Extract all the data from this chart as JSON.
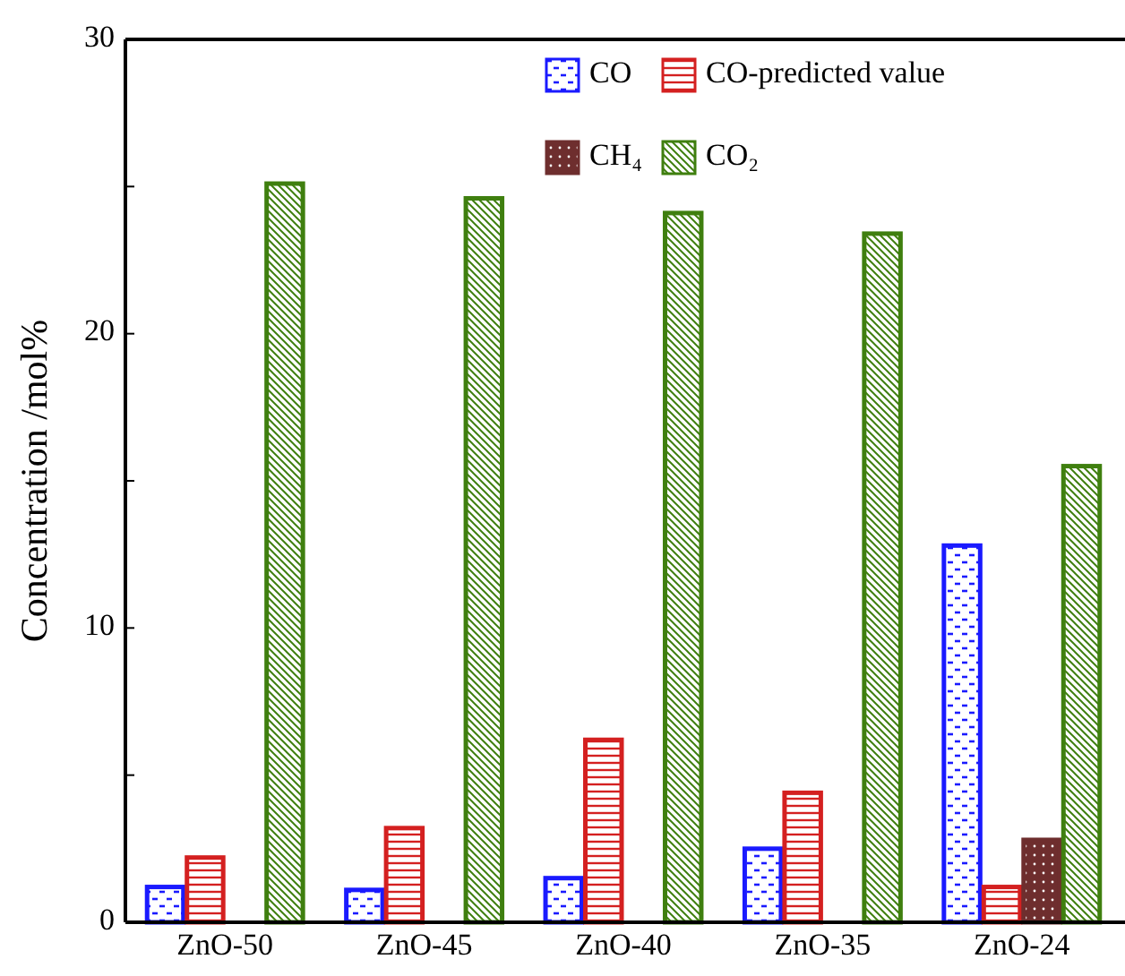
{
  "chart_data": {
    "type": "bar",
    "ylabel": "Concentration /mol%",
    "categories": [
      "ZnO-50",
      "ZnO-45",
      "ZnO-40",
      "ZnO-35",
      "ZnO-24"
    ],
    "series": [
      {
        "name": "CO",
        "color": "#1a1aff",
        "values": [
          1.2,
          1.1,
          1.5,
          2.5,
          12.8
        ]
      },
      {
        "name": "CO-predicted value",
        "color": "#d42020",
        "values": [
          2.2,
          3.2,
          6.2,
          4.4,
          1.2
        ]
      },
      {
        "name": "CH₄",
        "color": "#6e2e2e",
        "values": [
          null,
          null,
          null,
          null,
          2.8
        ]
      },
      {
        "name": "CO₂",
        "color": "#3f7f0f",
        "values": [
          25.1,
          24.6,
          24.1,
          23.4,
          15.5
        ]
      }
    ],
    "ylim": [
      0,
      30
    ],
    "yticks": [
      0,
      {
        "value": 5,
        "label": null
      },
      10,
      {
        "value": 15,
        "label": null
      },
      20,
      {
        "value": 25,
        "label": null
      },
      30
    ],
    "grid": false,
    "legend": "top right"
  }
}
